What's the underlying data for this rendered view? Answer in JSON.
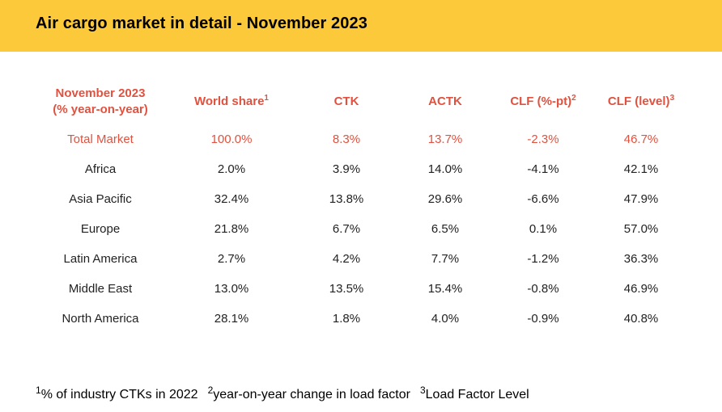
{
  "title": "Air cargo market in detail - November 2023",
  "table": {
    "header_row_label_line1": "November 2023",
    "header_row_label_line2": "(% year-on-year)",
    "columns": [
      {
        "label": "World share",
        "sup": "1"
      },
      {
        "label": "CTK",
        "sup": ""
      },
      {
        "label": "ACTK",
        "sup": ""
      },
      {
        "label": "CLF (%-pt)",
        "sup": "2"
      },
      {
        "label": "CLF (level)",
        "sup": "3"
      }
    ],
    "rows": [
      {
        "region": "Total Market",
        "values": [
          "100.0%",
          "8.3%",
          "13.7%",
          "-2.3%",
          "46.7%"
        ]
      },
      {
        "region": "Africa",
        "values": [
          "2.0%",
          "3.9%",
          "14.0%",
          "-4.1%",
          "42.1%"
        ]
      },
      {
        "region": "Asia Pacific",
        "values": [
          "32.4%",
          "13.8%",
          "29.6%",
          "-6.6%",
          "47.9%"
        ]
      },
      {
        "region": "Europe",
        "values": [
          "21.8%",
          "6.7%",
          "6.5%",
          "0.1%",
          "57.0%"
        ]
      },
      {
        "region": "Latin America",
        "values": [
          "2.7%",
          "4.2%",
          "7.7%",
          "-1.2%",
          "36.3%"
        ]
      },
      {
        "region": "Middle East",
        "values": [
          "13.0%",
          "13.5%",
          "15.4%",
          "-0.8%",
          "46.9%"
        ]
      },
      {
        "region": "North America",
        "values": [
          "28.1%",
          "1.8%",
          "4.0%",
          "-0.9%",
          "40.8%"
        ]
      }
    ]
  },
  "footnotes": [
    {
      "num": "1",
      "text": "% of industry CTKs in 2022"
    },
    {
      "num": "2",
      "text": "year-on-year change in load factor"
    },
    {
      "num": "3",
      "text": "Load Factor Level"
    }
  ],
  "colors": {
    "header_bar": "#fcc93a",
    "accent_red": "#e0523f",
    "body_text": "#222222"
  }
}
